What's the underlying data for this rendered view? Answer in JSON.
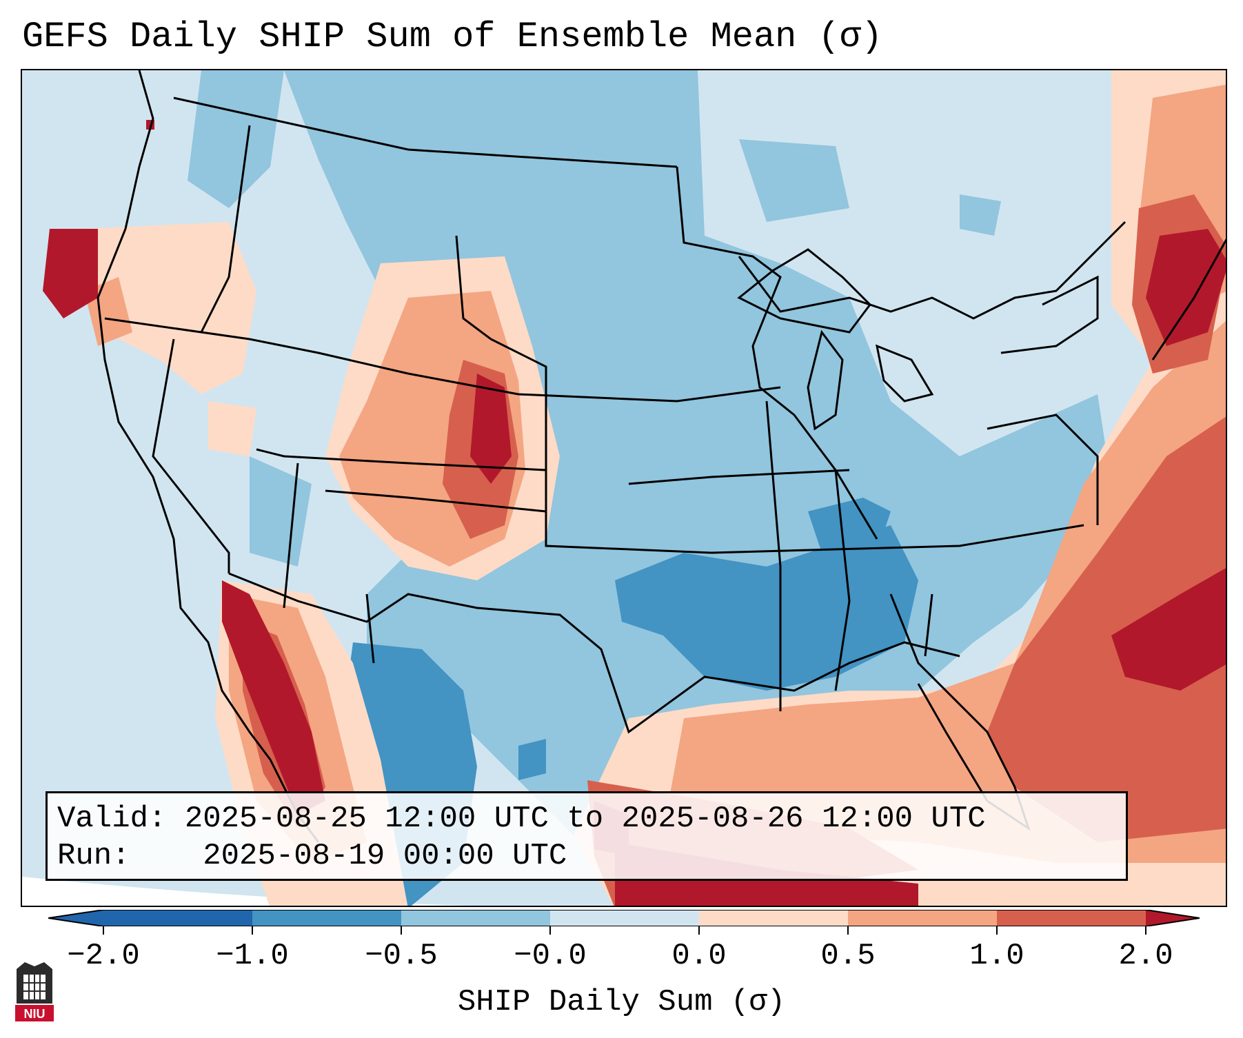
{
  "title": "GEFS Daily SHIP Sum of Ensemble Mean (σ)",
  "info": {
    "valid_label": "Valid:",
    "valid_value": "2025-08-25 12:00 UTC to 2025-08-26 12:00 UTC",
    "run_label": "Run:",
    "run_value": "2025-08-19 00:00 UTC"
  },
  "colorbar": {
    "label": "SHIP Daily Sum (σ)",
    "ticks": [
      "−2.0",
      "−1.0",
      "−0.5",
      "−0.0",
      "0.0",
      "0.5",
      "1.0",
      "2.0"
    ],
    "colors": [
      "#2166ac",
      "#4393c3",
      "#92c5de",
      "#d1e5f0",
      "#fddbc7",
      "#f4a582",
      "#d6604d",
      "#b2182b"
    ]
  },
  "logo": {
    "text": "NIU"
  }
}
